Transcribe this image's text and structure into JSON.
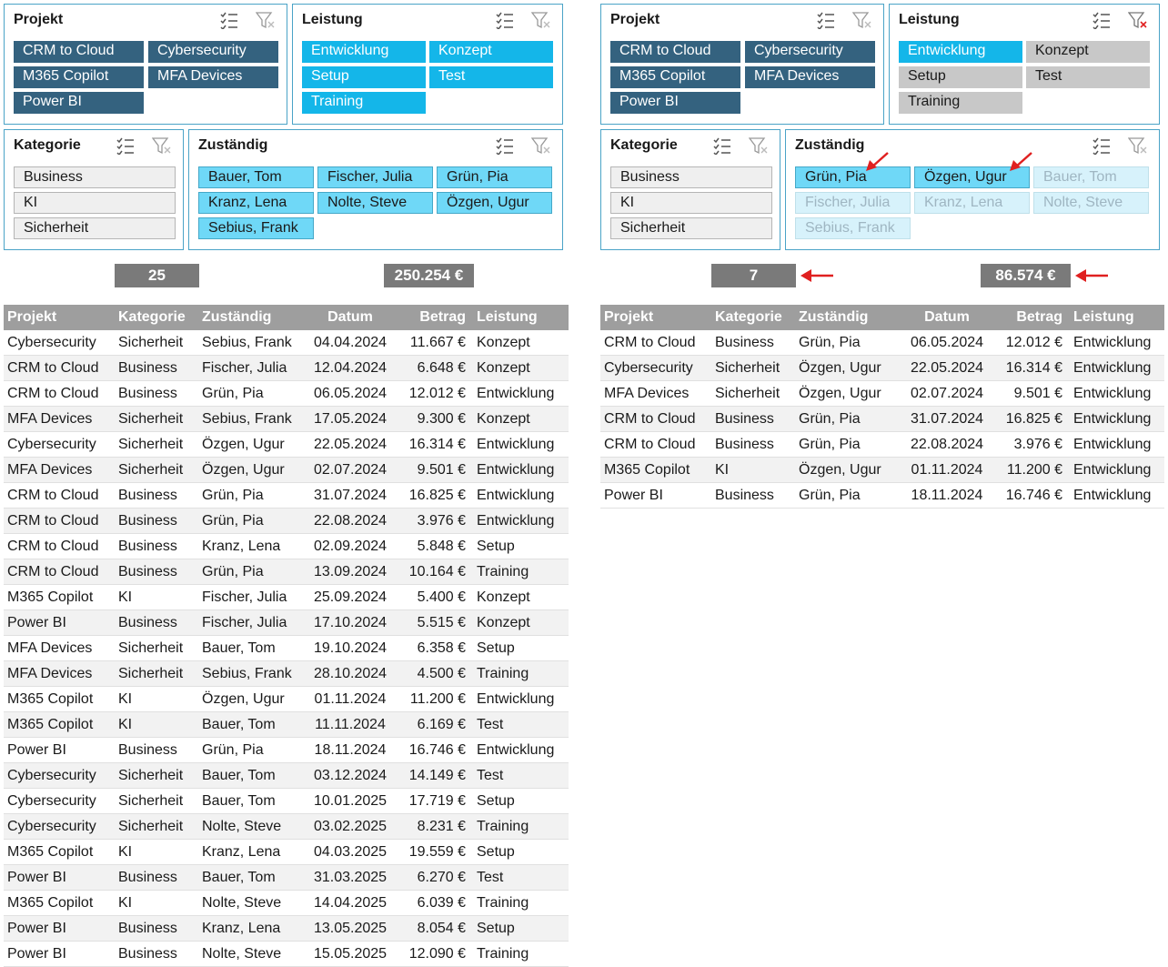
{
  "slicers": {
    "projekt_title": "Projekt",
    "leistung_title": "Leistung",
    "kategorie_title": "Kategorie",
    "zustaendig_title": "Zuständig",
    "projekt_items": [
      "CRM to Cloud",
      "Cybersecurity",
      "M365 Copilot",
      "MFA Devices",
      "Power BI"
    ],
    "leistung_items": [
      "Entwicklung",
      "Konzept",
      "Setup",
      "Test",
      "Training"
    ],
    "kategorie_items": [
      "Business",
      "KI",
      "Sicherheit"
    ],
    "zustaendig_items_left": [
      "Bauer, Tom",
      "Fischer, Julia",
      "Grün, Pia",
      "Kranz, Lena",
      "Nolte, Steve",
      "Özgen, Ugur",
      "Sebius, Frank"
    ],
    "zustaendig_items_right": [
      "Grün, Pia",
      "Özgen, Ugur",
      "Bauer, Tom",
      "Fischer, Julia",
      "Kranz, Lena",
      "Nolte, Steve",
      "Sebius, Frank"
    ]
  },
  "left": {
    "count": "25",
    "sum": "250.254 €"
  },
  "right": {
    "count": "7",
    "sum": "86.574 €"
  },
  "table": {
    "headers": [
      "Projekt",
      "Kategorie",
      "Zuständig",
      "Datum",
      "Betrag",
      "Leistung"
    ]
  },
  "rows_left": [
    [
      "Cybersecurity",
      "Sicherheit",
      "Sebius, Frank",
      "04.04.2024",
      "11.667 €",
      "Konzept"
    ],
    [
      "CRM to Cloud",
      "Business",
      "Fischer, Julia",
      "12.04.2024",
      "6.648 €",
      "Konzept"
    ],
    [
      "CRM to Cloud",
      "Business",
      "Grün, Pia",
      "06.05.2024",
      "12.012 €",
      "Entwicklung"
    ],
    [
      "MFA Devices",
      "Sicherheit",
      "Sebius, Frank",
      "17.05.2024",
      "9.300 €",
      "Konzept"
    ],
    [
      "Cybersecurity",
      "Sicherheit",
      "Özgen, Ugur",
      "22.05.2024",
      "16.314 €",
      "Entwicklung"
    ],
    [
      "MFA Devices",
      "Sicherheit",
      "Özgen, Ugur",
      "02.07.2024",
      "9.501 €",
      "Entwicklung"
    ],
    [
      "CRM to Cloud",
      "Business",
      "Grün, Pia",
      "31.07.2024",
      "16.825 €",
      "Entwicklung"
    ],
    [
      "CRM to Cloud",
      "Business",
      "Grün, Pia",
      "22.08.2024",
      "3.976 €",
      "Entwicklung"
    ],
    [
      "CRM to Cloud",
      "Business",
      "Kranz, Lena",
      "02.09.2024",
      "5.848 €",
      "Setup"
    ],
    [
      "CRM to Cloud",
      "Business",
      "Grün, Pia",
      "13.09.2024",
      "10.164 €",
      "Training"
    ],
    [
      "M365 Copilot",
      "KI",
      "Fischer, Julia",
      "25.09.2024",
      "5.400 €",
      "Konzept"
    ],
    [
      "Power BI",
      "Business",
      "Fischer, Julia",
      "17.10.2024",
      "5.515 €",
      "Konzept"
    ],
    [
      "MFA Devices",
      "Sicherheit",
      "Bauer, Tom",
      "19.10.2024",
      "6.358 €",
      "Setup"
    ],
    [
      "MFA Devices",
      "Sicherheit",
      "Sebius, Frank",
      "28.10.2024",
      "4.500 €",
      "Training"
    ],
    [
      "M365 Copilot",
      "KI",
      "Özgen, Ugur",
      "01.11.2024",
      "11.200 €",
      "Entwicklung"
    ],
    [
      "M365 Copilot",
      "KI",
      "Bauer, Tom",
      "11.11.2024",
      "6.169 €",
      "Test"
    ],
    [
      "Power BI",
      "Business",
      "Grün, Pia",
      "18.11.2024",
      "16.746 €",
      "Entwicklung"
    ],
    [
      "Cybersecurity",
      "Sicherheit",
      "Bauer, Tom",
      "03.12.2024",
      "14.149 €",
      "Test"
    ],
    [
      "Cybersecurity",
      "Sicherheit",
      "Bauer, Tom",
      "10.01.2025",
      "17.719 €",
      "Setup"
    ],
    [
      "Cybersecurity",
      "Sicherheit",
      "Nolte, Steve",
      "03.02.2025",
      "8.231 €",
      "Training"
    ],
    [
      "M365 Copilot",
      "KI",
      "Kranz, Lena",
      "04.03.2025",
      "19.559 €",
      "Setup"
    ],
    [
      "Power BI",
      "Business",
      "Bauer, Tom",
      "31.03.2025",
      "6.270 €",
      "Test"
    ],
    [
      "M365 Copilot",
      "KI",
      "Nolte, Steve",
      "14.04.2025",
      "6.039 €",
      "Training"
    ],
    [
      "Power BI",
      "Business",
      "Kranz, Lena",
      "13.05.2025",
      "8.054 €",
      "Setup"
    ],
    [
      "Power BI",
      "Business",
      "Nolte, Steve",
      "15.05.2025",
      "12.090 €",
      "Training"
    ]
  ],
  "rows_right": [
    [
      "CRM to Cloud",
      "Business",
      "Grün, Pia",
      "06.05.2024",
      "12.012 €",
      "Entwicklung"
    ],
    [
      "Cybersecurity",
      "Sicherheit",
      "Özgen, Ugur",
      "22.05.2024",
      "16.314 €",
      "Entwicklung"
    ],
    [
      "MFA Devices",
      "Sicherheit",
      "Özgen, Ugur",
      "02.07.2024",
      "9.501 €",
      "Entwicklung"
    ],
    [
      "CRM to Cloud",
      "Business",
      "Grün, Pia",
      "31.07.2024",
      "16.825 €",
      "Entwicklung"
    ],
    [
      "CRM to Cloud",
      "Business",
      "Grün, Pia",
      "22.08.2024",
      "3.976 €",
      "Entwicklung"
    ],
    [
      "M365 Copilot",
      "KI",
      "Özgen, Ugur",
      "01.11.2024",
      "11.200 €",
      "Entwicklung"
    ],
    [
      "Power BI",
      "Business",
      "Grün, Pia",
      "18.11.2024",
      "16.746 €",
      "Entwicklung"
    ]
  ],
  "colors": {
    "projekt_button": "#34627f",
    "leistung_button": "#14b6e9",
    "zustaendig_button": "#6fd8f7",
    "kpi_background": "#7a7a7a",
    "table_header": "#9e9e9e",
    "arrow": "#e02020"
  }
}
